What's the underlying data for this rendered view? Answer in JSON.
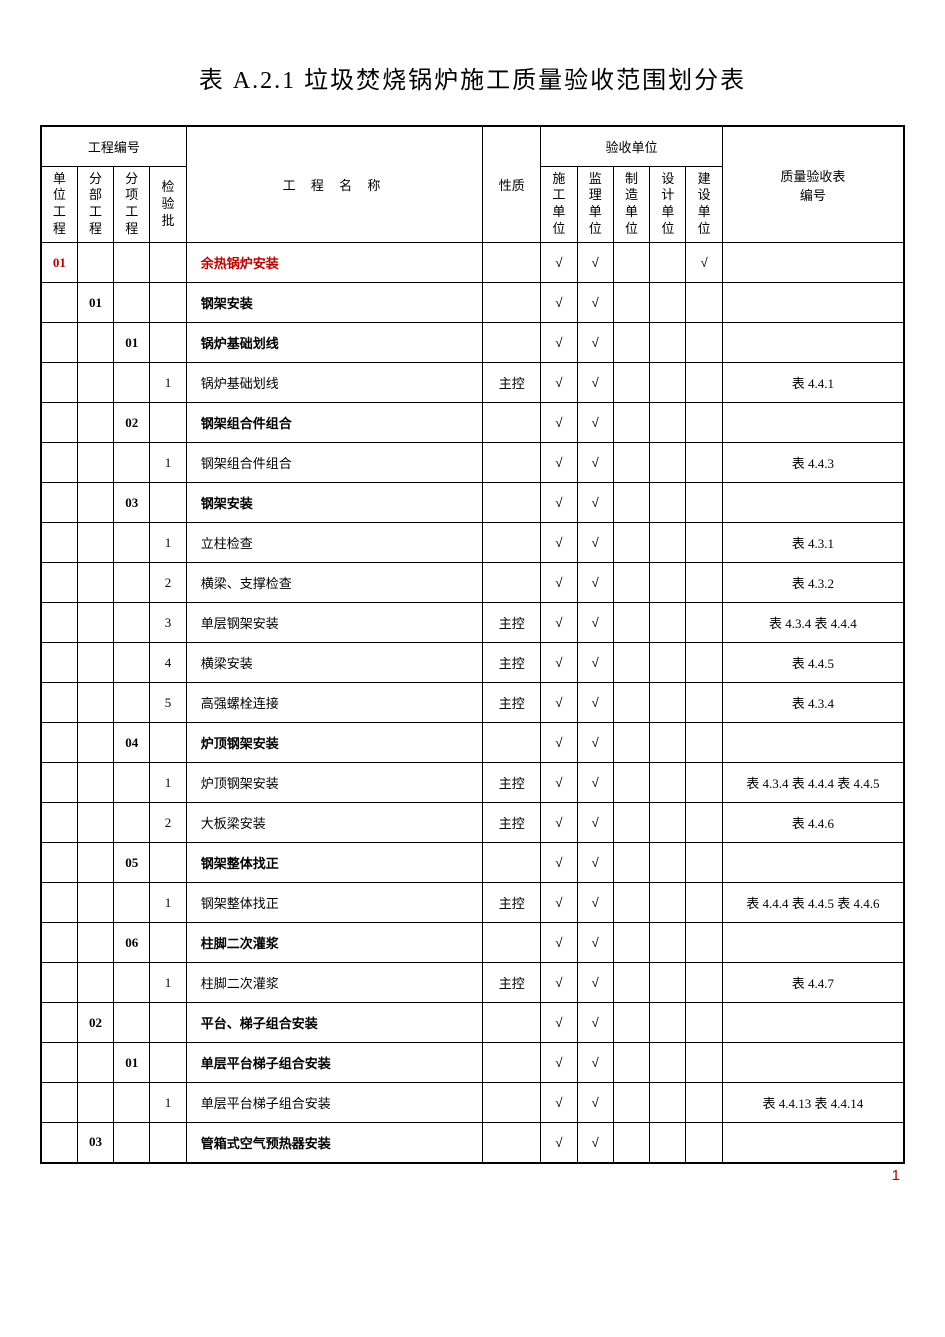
{
  "title": "表 A.2.1  垃圾焚烧锅炉施工质量验收范围划分表",
  "page_number": "1",
  "check_mark": "√",
  "headers": {
    "group_code": "工程编号",
    "group_accept": "验收单位",
    "unit": "单位工程",
    "part": "分部工程",
    "item": "分项工程",
    "batch": "检验批",
    "name": "工 程 名 称",
    "nature": "性质",
    "au1": "施工单位",
    "au2": "监理单位",
    "au3": "制造单位",
    "au4": "设计单位",
    "au5": "建设单位",
    "ref": "质量验收表编号"
  },
  "rows": [
    {
      "unit": "01",
      "part": "",
      "item": "",
      "batch": "",
      "name": "余热锅炉安装",
      "name_cls": "red",
      "nature": "",
      "c": [
        1,
        1,
        0,
        0,
        1
      ],
      "ref": ""
    },
    {
      "unit": "",
      "part": "01",
      "item": "",
      "batch": "",
      "name": "钢架安装",
      "name_cls": "bold",
      "nature": "",
      "c": [
        1,
        1,
        0,
        0,
        0
      ],
      "ref": ""
    },
    {
      "unit": "",
      "part": "",
      "item": "01",
      "batch": "",
      "name": "锅炉基础划线",
      "name_cls": "bold",
      "nature": "",
      "c": [
        1,
        1,
        0,
        0,
        0
      ],
      "ref": ""
    },
    {
      "unit": "",
      "part": "",
      "item": "",
      "batch": "1",
      "name": "锅炉基础划线",
      "name_cls": "",
      "nature": "主控",
      "c": [
        1,
        1,
        0,
        0,
        0
      ],
      "ref": "表 4.4.1"
    },
    {
      "unit": "",
      "part": "",
      "item": "02",
      "batch": "",
      "name": "钢架组合件组合",
      "name_cls": "bold",
      "nature": "",
      "c": [
        1,
        1,
        0,
        0,
        0
      ],
      "ref": ""
    },
    {
      "unit": "",
      "part": "",
      "item": "",
      "batch": "1",
      "name": "钢架组合件组合",
      "name_cls": "",
      "nature": "",
      "c": [
        1,
        1,
        0,
        0,
        0
      ],
      "ref": "表 4.4.3"
    },
    {
      "unit": "",
      "part": "",
      "item": "03",
      "batch": "",
      "name": "钢架安装",
      "name_cls": "bold",
      "nature": "",
      "c": [
        1,
        1,
        0,
        0,
        0
      ],
      "ref": ""
    },
    {
      "unit": "",
      "part": "",
      "item": "",
      "batch": "1",
      "name": "立柱检查",
      "name_cls": "",
      "nature": "",
      "c": [
        1,
        1,
        0,
        0,
        0
      ],
      "ref": "表 4.3.1"
    },
    {
      "unit": "",
      "part": "",
      "item": "",
      "batch": "2",
      "name": "横梁、支撑检查",
      "name_cls": "",
      "nature": "",
      "c": [
        1,
        1,
        0,
        0,
        0
      ],
      "ref": "表 4.3.2"
    },
    {
      "unit": "",
      "part": "",
      "item": "",
      "batch": "3",
      "name": "单层钢架安装",
      "name_cls": "",
      "nature": "主控",
      "c": [
        1,
        1,
        0,
        0,
        0
      ],
      "ref": "表 4.3.4 表 4.4.4"
    },
    {
      "unit": "",
      "part": "",
      "item": "",
      "batch": "4",
      "name": "横梁安装",
      "name_cls": "",
      "nature": "主控",
      "c": [
        1,
        1,
        0,
        0,
        0
      ],
      "ref": "表 4.4.5"
    },
    {
      "unit": "",
      "part": "",
      "item": "",
      "batch": "5",
      "name": "高强螺栓连接",
      "name_cls": "",
      "nature": "主控",
      "c": [
        1,
        1,
        0,
        0,
        0
      ],
      "ref": "表 4.3.4"
    },
    {
      "unit": "",
      "part": "",
      "item": "04",
      "batch": "",
      "name": "炉顶钢架安装",
      "name_cls": "bold",
      "nature": "",
      "c": [
        1,
        1,
        0,
        0,
        0
      ],
      "ref": ""
    },
    {
      "unit": "",
      "part": "",
      "item": "",
      "batch": "1",
      "name": "炉顶钢架安装",
      "name_cls": "",
      "nature": "主控",
      "c": [
        1,
        1,
        0,
        0,
        0
      ],
      "ref": "表 4.3.4 表 4.4.4 表 4.4.5"
    },
    {
      "unit": "",
      "part": "",
      "item": "",
      "batch": "2",
      "name": "大板梁安装",
      "name_cls": "",
      "nature": "主控",
      "c": [
        1,
        1,
        0,
        0,
        0
      ],
      "ref": "表 4.4.6"
    },
    {
      "unit": "",
      "part": "",
      "item": "05",
      "batch": "",
      "name": "钢架整体找正",
      "name_cls": "bold",
      "nature": "",
      "c": [
        1,
        1,
        0,
        0,
        0
      ],
      "ref": ""
    },
    {
      "unit": "",
      "part": "",
      "item": "",
      "batch": "1",
      "name": "钢架整体找正",
      "name_cls": "",
      "nature": "主控",
      "c": [
        1,
        1,
        0,
        0,
        0
      ],
      "ref": "表 4.4.4 表 4.4.5 表 4.4.6"
    },
    {
      "unit": "",
      "part": "",
      "item": "06",
      "batch": "",
      "name": "柱脚二次灌浆",
      "name_cls": "bold",
      "nature": "",
      "c": [
        1,
        1,
        0,
        0,
        0
      ],
      "ref": ""
    },
    {
      "unit": "",
      "part": "",
      "item": "",
      "batch": "1",
      "name": "柱脚二次灌浆",
      "name_cls": "",
      "nature": "主控",
      "c": [
        1,
        1,
        0,
        0,
        0
      ],
      "ref": "表 4.4.7"
    },
    {
      "unit": "",
      "part": "02",
      "item": "",
      "batch": "",
      "name": "平台、梯子组合安装",
      "name_cls": "bold",
      "nature": "",
      "c": [
        1,
        1,
        0,
        0,
        0
      ],
      "ref": ""
    },
    {
      "unit": "",
      "part": "",
      "item": "01",
      "batch": "",
      "name": "单层平台梯子组合安装",
      "name_cls": "bold",
      "nature": "",
      "c": [
        1,
        1,
        0,
        0,
        0
      ],
      "ref": ""
    },
    {
      "unit": "",
      "part": "",
      "item": "",
      "batch": "1",
      "name": "单层平台梯子组合安装",
      "name_cls": "",
      "nature": "",
      "c": [
        1,
        1,
        0,
        0,
        0
      ],
      "ref": "表 4.4.13 表 4.4.14"
    },
    {
      "unit": "",
      "part": "03",
      "item": "",
      "batch": "",
      "name": "管箱式空气预热器安装",
      "name_cls": "bold",
      "nature": "",
      "c": [
        1,
        1,
        0,
        0,
        0
      ],
      "ref": ""
    }
  ]
}
